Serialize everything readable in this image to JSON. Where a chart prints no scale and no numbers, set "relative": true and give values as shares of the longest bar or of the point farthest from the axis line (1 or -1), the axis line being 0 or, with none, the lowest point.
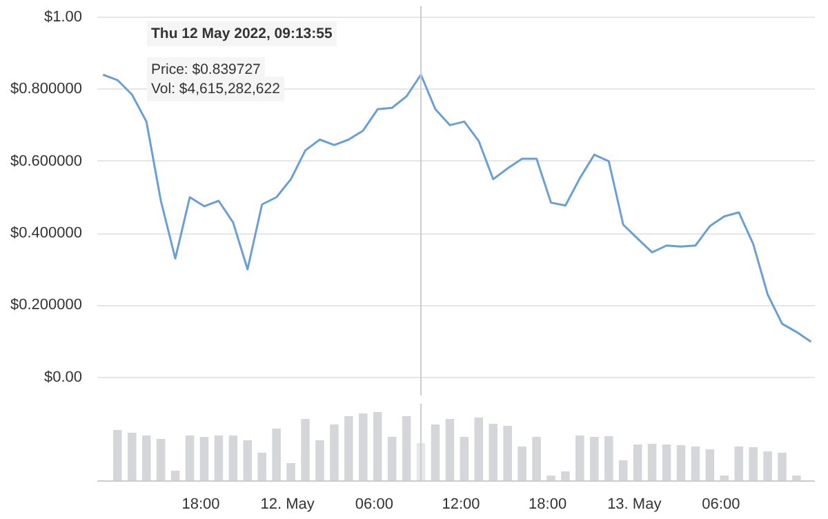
{
  "chart_data": [
    {
      "type": "line",
      "tick_labels": "y",
      "grid": "y",
      "line_style": "solid",
      "x": [
        "2022-05-11T11:14",
        "2022-05-11T12:14",
        "2022-05-11T13:14",
        "2022-05-11T14:14",
        "2022-05-11T15:14",
        "2022-05-11T16:14",
        "2022-05-11T17:14",
        "2022-05-11T18:14",
        "2022-05-11T19:14",
        "2022-05-11T20:14",
        "2022-05-11T21:14",
        "2022-05-11T22:14",
        "2022-05-11T23:14",
        "2022-05-12T00:14",
        "2022-05-12T01:14",
        "2022-05-12T02:14",
        "2022-05-12T03:14",
        "2022-05-12T04:14",
        "2022-05-12T05:14",
        "2022-05-12T06:14",
        "2022-05-12T07:14",
        "2022-05-12T08:14",
        "2022-05-12T09:14",
        "2022-05-12T10:14",
        "2022-05-12T11:14",
        "2022-05-12T12:14",
        "2022-05-12T13:14",
        "2022-05-12T14:14",
        "2022-05-12T15:14",
        "2022-05-12T16:14",
        "2022-05-12T17:14",
        "2022-05-12T18:14",
        "2022-05-12T19:14",
        "2022-05-12T20:14",
        "2022-05-12T21:14",
        "2022-05-12T22:14",
        "2022-05-12T23:14",
        "2022-05-13T00:14",
        "2022-05-13T01:14",
        "2022-05-13T02:14",
        "2022-05-13T03:14",
        "2022-05-13T04:14",
        "2022-05-13T05:14",
        "2022-05-13T06:14",
        "2022-05-13T07:14",
        "2022-05-13T08:14",
        "2022-05-13T09:14",
        "2022-05-13T10:14",
        "2022-05-13T11:14",
        "2022-05-13T12:14"
      ],
      "series": [
        {
          "color": "#6a9fd6",
          "values": [
            0.84,
            0.825,
            0.785,
            0.71,
            0.49,
            0.33,
            0.5,
            0.475,
            0.49,
            0.43,
            0.3,
            0.48,
            0.5,
            0.55,
            0.63,
            0.66,
            0.645,
            0.66,
            0.685,
            0.744,
            0.748,
            0.78,
            0.84,
            0.744,
            0.7,
            0.71,
            0.656,
            0.55,
            0.58,
            0.607,
            0.607,
            0.485,
            0.477,
            0.553,
            0.618,
            0.6,
            0.424,
            0.385,
            0.347,
            0.366,
            0.363,
            0.366,
            0.42,
            0.447,
            0.458,
            0.37,
            0.23,
            0.149,
            0.126,
            0.099
          ]
        }
      ],
      "xlim": [
        "2022-05-11T10:50",
        "2022-05-13T12:30"
      ],
      "ylim": [
        -0.05,
        1.03
      ],
      "yticks": [
        {
          "value": 0,
          "label": "$0.00"
        },
        {
          "value": 0.2,
          "label": "$0.200000"
        },
        {
          "value": 0.4,
          "label": "$0.400000"
        },
        {
          "value": 0.6,
          "label": "$0.600000"
        },
        {
          "value": 0.8,
          "label": "$0.800000"
        },
        {
          "value": 1,
          "label": "$1.00"
        }
      ],
      "ref_lines": [
        {
          "axis": "x",
          "value": "2022-05-12T09:14",
          "color": "#cccccc"
        }
      ],
      "annotations": [
        "Thu 12 May 2022, 09:13:55",
        "Price: $0.839727",
        "Vol: $4,615,282,622"
      ]
    },
    {
      "type": "bar",
      "relative": true,
      "tick_labels": "x",
      "grid": false,
      "x": [
        "2022-05-11T12:14",
        "2022-05-11T13:14",
        "2022-05-11T14:14",
        "2022-05-11T15:14",
        "2022-05-11T16:14",
        "2022-05-11T17:14",
        "2022-05-11T18:14",
        "2022-05-11T19:14",
        "2022-05-11T20:14",
        "2022-05-11T21:14",
        "2022-05-11T22:14",
        "2022-05-11T23:14",
        "2022-05-12T00:14",
        "2022-05-12T01:14",
        "2022-05-12T02:14",
        "2022-05-12T03:14",
        "2022-05-12T04:14",
        "2022-05-12T05:14",
        "2022-05-12T06:14",
        "2022-05-12T07:14",
        "2022-05-12T08:14",
        "2022-05-12T09:14",
        "2022-05-12T10:14",
        "2022-05-12T11:14",
        "2022-05-12T12:14",
        "2022-05-12T13:14",
        "2022-05-12T14:14",
        "2022-05-12T15:14",
        "2022-05-12T16:14",
        "2022-05-12T17:14",
        "2022-05-12T18:14",
        "2022-05-12T19:14",
        "2022-05-12T20:14",
        "2022-05-12T21:14",
        "2022-05-12T22:14",
        "2022-05-12T23:14",
        "2022-05-13T00:14",
        "2022-05-13T01:14",
        "2022-05-13T02:14",
        "2022-05-13T03:14",
        "2022-05-13T04:14",
        "2022-05-13T05:14",
        "2022-05-13T06:14",
        "2022-05-13T07:14",
        "2022-05-13T08:14",
        "2022-05-13T09:14",
        "2022-05-13T10:14",
        "2022-05-13T11:14"
      ],
      "values": [
        0.74,
        0.7,
        0.66,
        0.61,
        0.15,
        0.66,
        0.64,
        0.66,
        0.66,
        0.59,
        0.41,
        0.76,
        0.26,
        0.9,
        0.59,
        0.82,
        0.94,
        0.98,
        1.0,
        0.64,
        0.94,
        0.55,
        0.82,
        0.9,
        0.64,
        0.92,
        0.83,
        0.8,
        0.5,
        0.64,
        0.08,
        0.14,
        0.66,
        0.64,
        0.65,
        0.3,
        0.53,
        0.54,
        0.53,
        0.52,
        0.5,
        0.46,
        0.08,
        0.5,
        0.49,
        0.43,
        0.41,
        0.08
      ],
      "colors": [
        "#d5d6da",
        "#d5d6da",
        "#d5d6da",
        "#d5d6da",
        "#d5d6da",
        "#d5d6da",
        "#d5d6da",
        "#d5d6da",
        "#d5d6da",
        "#d5d6da",
        "#d5d6da",
        "#d5d6da",
        "#d5d6da",
        "#d5d6da",
        "#d5d6da",
        "#d5d6da",
        "#d5d6da",
        "#d5d6da",
        "#d5d6da",
        "#d5d6da",
        "#d5d6da",
        "#e6e7ea",
        "#d5d6da",
        "#d5d6da",
        "#d5d6da",
        "#d5d6da",
        "#d5d6da",
        "#d5d6da",
        "#d5d6da",
        "#d5d6da",
        "#d5d6da",
        "#d5d6da",
        "#d5d6da",
        "#d5d6da",
        "#d5d6da",
        "#d5d6da",
        "#d5d6da",
        "#d5d6da",
        "#d5d6da",
        "#d5d6da",
        "#d5d6da",
        "#d5d6da",
        "#d5d6da",
        "#d5d6da",
        "#d5d6da",
        "#d5d6da",
        "#d5d6da",
        "#d5d6da"
      ],
      "xlim": [
        "2022-05-11T10:50",
        "2022-05-13T12:30"
      ],
      "xticks": [
        {
          "value": "2022-05-11T18:00",
          "label": "18:00"
        },
        {
          "value": "2022-05-12T00:00",
          "label": "12. May"
        },
        {
          "value": "2022-05-12T06:00",
          "label": "06:00"
        },
        {
          "value": "2022-05-12T12:00",
          "label": "12:00"
        },
        {
          "value": "2022-05-12T18:00",
          "label": "18:00"
        },
        {
          "value": "2022-05-13T00:00",
          "label": "13. May"
        },
        {
          "value": "2022-05-13T06:00",
          "label": "06:00"
        }
      ],
      "ref_lines": [
        {
          "axis": "x",
          "value": "2022-05-12T09:14",
          "color": "#cccccc"
        }
      ]
    }
  ]
}
